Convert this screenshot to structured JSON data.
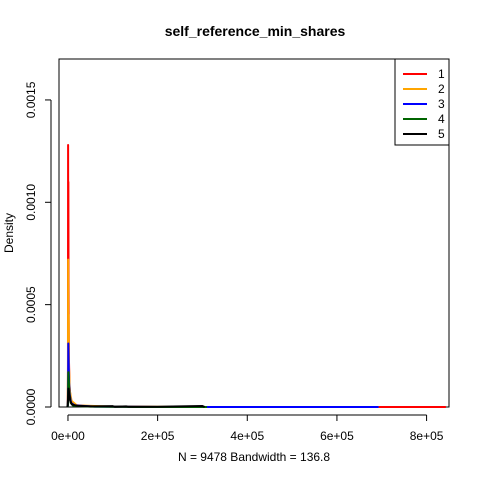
{
  "chart_data": {
    "type": "line",
    "title": "self_reference_min_shares",
    "xlabel": "N = 9478   Bandwidth = 136.8",
    "ylabel": "Density",
    "xlim": [
      -20000,
      850000
    ],
    "ylim": [
      0,
      0.0017
    ],
    "x_ticks": [
      0,
      200000,
      400000,
      600000,
      800000
    ],
    "x_tick_labels": [
      "0e+00",
      "2e+05",
      "4e+05",
      "6e+05",
      "8e+05"
    ],
    "y_ticks": [
      0,
      0.0005,
      0.001,
      0.0015
    ],
    "y_tick_labels": [
      "0.0000",
      "0.0005",
      "0.0010",
      "0.0015"
    ],
    "legend_position": "top-right",
    "series": [
      {
        "name": "1",
        "color": "#ff0000",
        "points": [
          [
            -400,
            0
          ],
          [
            0,
            0.0002
          ],
          [
            300,
            0.00128
          ],
          [
            600,
            0.00075
          ],
          [
            900,
            0.0011
          ],
          [
            1300,
            0.0006
          ],
          [
            2000,
            0.00025
          ],
          [
            3500,
            0.0001
          ],
          [
            6000,
            4e-05
          ],
          [
            12000,
            1e-05
          ],
          [
            50000,
            3e-06
          ],
          [
            200000,
            0
          ],
          [
            843000,
            0
          ]
        ]
      },
      {
        "name": "2",
        "color": "#ffa500",
        "points": [
          [
            -400,
            0
          ],
          [
            0,
            0.00015
          ],
          [
            500,
            0.00072
          ],
          [
            900,
            0.00035
          ],
          [
            1400,
            0.00045
          ],
          [
            2200,
            0.0002
          ],
          [
            4000,
            8e-05
          ],
          [
            8000,
            3e-05
          ],
          [
            20000,
            8e-06
          ],
          [
            100000,
            2e-06
          ],
          [
            300000,
            0
          ],
          [
            693000,
            0
          ]
        ]
      },
      {
        "name": "3",
        "color": "#0000ff",
        "points": [
          [
            -400,
            0
          ],
          [
            200,
            8e-05
          ],
          [
            800,
            0.00031
          ],
          [
            1500,
            0.00022
          ],
          [
            2500,
            0.00012
          ],
          [
            4000,
            6e-05
          ],
          [
            7000,
            2e-05
          ],
          [
            15000,
            8e-06
          ],
          [
            60000,
            2e-06
          ],
          [
            200000,
            0
          ],
          [
            693000,
            0
          ]
        ]
      },
      {
        "name": "4",
        "color": "#006400",
        "points": [
          [
            -400,
            0
          ],
          [
            300,
            6e-05
          ],
          [
            1000,
            0.00017
          ],
          [
            2000,
            0.00012
          ],
          [
            3500,
            6e-05
          ],
          [
            6000,
            2e-05
          ],
          [
            12000,
            6e-06
          ],
          [
            50000,
            2e-06
          ],
          [
            150000,
            0
          ],
          [
            310000,
            0
          ]
        ]
      },
      {
        "name": "5",
        "color": "#000000",
        "points": [
          [
            -1500,
            0
          ],
          [
            -500,
            1e-05
          ],
          [
            200,
            4e-05
          ],
          [
            1200,
            9e-05
          ],
          [
            2500,
            7e-05
          ],
          [
            5000,
            3e-05
          ],
          [
            9000,
            1.2e-05
          ],
          [
            20000,
            6e-06
          ],
          [
            50000,
            3e-06
          ],
          [
            100000,
            4e-06
          ],
          [
            105000,
            1e-06
          ],
          [
            130000,
            3e-06
          ],
          [
            135000,
            1e-06
          ],
          [
            200000,
            1e-06
          ],
          [
            300000,
            5e-06
          ],
          [
            305000,
            0
          ]
        ]
      }
    ]
  }
}
